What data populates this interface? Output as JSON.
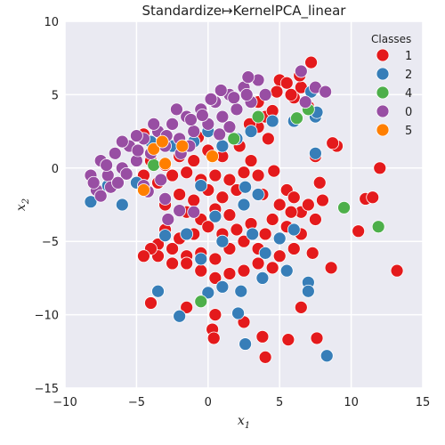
{
  "chart_data": {
    "type": "scatter",
    "title": "Standardize↦KernelPCA_linear",
    "xlabel": "x",
    "xlabel_sub": "1",
    "ylabel": "x",
    "ylabel_sub": "2",
    "xlim": [
      -10,
      15
    ],
    "ylim": [
      -15,
      10
    ],
    "xticks": [
      -10,
      -5,
      0,
      5,
      10,
      15
    ],
    "yticks": [
      -15,
      -10,
      -5,
      0,
      5,
      10
    ],
    "xtick_labels": [
      "−10",
      "−5",
      "0",
      "5",
      "10",
      "15"
    ],
    "ytick_labels": [
      "−15",
      "−10",
      "−5",
      "0",
      "5",
      "10"
    ],
    "grid": true,
    "legend": {
      "title": "Classes",
      "placement": "top-right"
    },
    "series": [
      {
        "name": "1",
        "color": "#e41a1c",
        "points": [
          [
            7.2,
            7.2
          ],
          [
            5.0,
            6.0
          ],
          [
            6.5,
            5.5
          ],
          [
            4.8,
            5.2
          ],
          [
            5.5,
            5.8
          ],
          [
            6.0,
            4.8
          ],
          [
            7.0,
            4.2
          ],
          [
            3.5,
            4.5
          ],
          [
            4.0,
            3.5
          ],
          [
            3.5,
            2.8
          ],
          [
            2.2,
            1.5
          ],
          [
            1.0,
            0.8
          ],
          [
            0.0,
            1.2
          ],
          [
            -1.0,
            0.5
          ],
          [
            -2.0,
            0.8
          ],
          [
            -3.0,
            0.2
          ],
          [
            -4.0,
            0.5
          ],
          [
            -4.5,
            -0.5
          ],
          [
            -3.5,
            -1.0
          ],
          [
            -2.5,
            -0.5
          ],
          [
            -1.5,
            -0.3
          ],
          [
            -0.5,
            -0.8
          ],
          [
            0.5,
            -0.5
          ],
          [
            1.5,
            -0.8
          ],
          [
            2.5,
            -0.3
          ],
          [
            3.5,
            -0.5
          ],
          [
            3.0,
            0.5
          ],
          [
            2.0,
            -1.5
          ],
          [
            1.0,
            -2.0
          ],
          [
            0.0,
            -1.5
          ],
          [
            -1.0,
            -2.2
          ],
          [
            -2.0,
            -1.8
          ],
          [
            -3.0,
            -2.5
          ],
          [
            -1.5,
            -3.0
          ],
          [
            -0.5,
            -3.5
          ],
          [
            0.5,
            -2.8
          ],
          [
            1.5,
            -3.2
          ],
          [
            2.5,
            -2.5
          ],
          [
            3.0,
            -3.8
          ],
          [
            2.0,
            -4.2
          ],
          [
            1.0,
            -4.5
          ],
          [
            0.0,
            -4.0
          ],
          [
            -1.0,
            -4.5
          ],
          [
            -2.0,
            -4.8
          ],
          [
            -3.0,
            -4.2
          ],
          [
            -3.5,
            -5.2
          ],
          [
            -2.5,
            -5.5
          ],
          [
            -1.5,
            -6.0
          ],
          [
            -0.5,
            -5.8
          ],
          [
            0.5,
            -6.2
          ],
          [
            1.5,
            -5.5
          ],
          [
            2.5,
            -5.0
          ],
          [
            3.5,
            -5.5
          ],
          [
            4.0,
            -4.5
          ],
          [
            4.5,
            -3.5
          ],
          [
            5.0,
            -2.5
          ],
          [
            5.5,
            -1.5
          ],
          [
            6.0,
            -2.0
          ],
          [
            6.5,
            -3.0
          ],
          [
            7.0,
            -2.5
          ],
          [
            7.5,
            -3.5
          ],
          [
            6.5,
            -4.5
          ],
          [
            5.5,
            -4.0
          ],
          [
            6.0,
            -5.5
          ],
          [
            5.0,
            -6.0
          ],
          [
            4.5,
            -6.8
          ],
          [
            3.5,
            -6.5
          ],
          [
            2.5,
            -7.0
          ],
          [
            1.5,
            -7.2
          ],
          [
            0.5,
            -7.5
          ],
          [
            -0.5,
            -7.0
          ],
          [
            -1.5,
            -6.5
          ],
          [
            -2.5,
            -6.5
          ],
          [
            -3.5,
            -6.0
          ],
          [
            -4.0,
            -5.5
          ],
          [
            -4.5,
            -6.0
          ],
          [
            -4.0,
            -9.2
          ],
          [
            -1.5,
            -9.5
          ],
          [
            0.5,
            -10.0
          ],
          [
            0.3,
            -11.0
          ],
          [
            0.4,
            -11.6
          ],
          [
            2.5,
            -10.5
          ],
          [
            3.8,
            -11.5
          ],
          [
            4.0,
            -12.9
          ],
          [
            5.6,
            -11.7
          ],
          [
            7.6,
            -11.6
          ],
          [
            6.5,
            -9.5
          ],
          [
            8.6,
            -6.8
          ],
          [
            10.5,
            -4.3
          ],
          [
            13.2,
            -7.0
          ],
          [
            11.0,
            -2.1
          ],
          [
            12.0,
            0.0
          ],
          [
            11.5,
            -2.0
          ],
          [
            9.0,
            1.5
          ],
          [
            8.7,
            1.7
          ],
          [
            7.5,
            0.8
          ],
          [
            7.8,
            -1.0
          ],
          [
            8.0,
            -2.2
          ],
          [
            7.3,
            -5.8
          ],
          [
            5.8,
            -3.0
          ],
          [
            3.8,
            -1.8
          ],
          [
            4.6,
            -0.2
          ],
          [
            4.2,
            2.0
          ],
          [
            2.9,
            3.0
          ],
          [
            -0.7,
            2.1
          ],
          [
            -4.5,
            2.3
          ],
          [
            5.8,
            5.0
          ],
          [
            6.4,
            6.3
          ],
          [
            4.5,
            3.9
          ]
        ]
      },
      {
        "name": "2",
        "color": "#377eb8",
        "points": [
          [
            6.5,
            6.6
          ],
          [
            7.2,
            5.2
          ],
          [
            7.5,
            3.5
          ],
          [
            6.0,
            3.2
          ],
          [
            4.5,
            3.2
          ],
          [
            3.0,
            2.5
          ],
          [
            2.0,
            2.0
          ],
          [
            1.0,
            1.5
          ],
          [
            0.0,
            2.5
          ],
          [
            -1.0,
            1.8
          ],
          [
            -2.5,
            1.5
          ],
          [
            -4.0,
            1.8
          ],
          [
            -5.0,
            -1.0
          ],
          [
            -6.0,
            -2.5
          ],
          [
            -8.2,
            -2.3
          ],
          [
            -7.0,
            -1.2
          ],
          [
            3.5,
            -1.8
          ],
          [
            2.5,
            -2.5
          ],
          [
            0.5,
            -3.3
          ],
          [
            -1.5,
            -4.5
          ],
          [
            -3.0,
            -4.6
          ],
          [
            4.0,
            -5.8
          ],
          [
            5.0,
            -4.8
          ],
          [
            6.0,
            -4.2
          ],
          [
            5.5,
            -7.0
          ],
          [
            7.0,
            -7.8
          ],
          [
            7.0,
            -8.4
          ],
          [
            3.8,
            -7.5
          ],
          [
            2.3,
            -8.4
          ],
          [
            1.0,
            -8.1
          ],
          [
            -0.5,
            -6.2
          ],
          [
            -3.5,
            -8.4
          ],
          [
            -2.0,
            -10.1
          ],
          [
            -0.0,
            -8.5
          ],
          [
            2.1,
            -9.9
          ],
          [
            2.6,
            -12.0
          ],
          [
            8.3,
            -12.8
          ],
          [
            1.0,
            -5.0
          ],
          [
            3.1,
            -4.5
          ],
          [
            2.6,
            -1.3
          ],
          [
            7.5,
            1.0
          ],
          [
            7.6,
            3.8
          ],
          [
            -0.5,
            -1.2
          ]
        ]
      },
      {
        "name": "4",
        "color": "#4daf4a",
        "points": [
          [
            6.2,
            3.4
          ],
          [
            7.0,
            4.0
          ],
          [
            9.5,
            -2.7
          ],
          [
            11.9,
            -4.0
          ],
          [
            -0.5,
            -9.1
          ],
          [
            1.8,
            2.0
          ],
          [
            -3.8,
            0.2
          ],
          [
            3.5,
            3.5
          ]
        ]
      },
      {
        "name": "0",
        "color": "#984ea3",
        "points": [
          [
            -8.2,
            -0.5
          ],
          [
            -7.8,
            -1.5
          ],
          [
            -7.5,
            0.5
          ],
          [
            -7.0,
            -0.5
          ],
          [
            -6.5,
            1.0
          ],
          [
            -6.0,
            0.0
          ],
          [
            -5.5,
            1.5
          ],
          [
            -5.0,
            0.5
          ],
          [
            -4.5,
            2.0
          ],
          [
            -4.0,
            1.0
          ],
          [
            -3.5,
            2.5
          ],
          [
            -3.0,
            1.5
          ],
          [
            -2.5,
            3.0
          ],
          [
            -2.0,
            2.0
          ],
          [
            -1.5,
            3.5
          ],
          [
            -1.0,
            2.5
          ],
          [
            -0.5,
            4.0
          ],
          [
            0.0,
            3.0
          ],
          [
            0.5,
            4.5
          ],
          [
            1.0,
            3.5
          ],
          [
            1.5,
            5.0
          ],
          [
            2.0,
            4.0
          ],
          [
            2.5,
            5.5
          ],
          [
            3.0,
            4.5
          ],
          [
            3.5,
            6.0
          ],
          [
            4.0,
            5.0
          ],
          [
            6.5,
            6.6
          ],
          [
            7.5,
            5.5
          ],
          [
            8.2,
            5.2
          ],
          [
            6.8,
            4.5
          ],
          [
            -6.0,
            1.8
          ],
          [
            -5.0,
            2.2
          ],
          [
            -4.2,
            -1.6
          ],
          [
            -3.0,
            -2.1
          ],
          [
            -2.0,
            -2.9
          ],
          [
            -1.0,
            -3.0
          ],
          [
            -2.8,
            -3.5
          ],
          [
            -4.5,
            -1.2
          ],
          [
            -6.8,
            -1.3
          ],
          [
            -7.5,
            -1.9
          ],
          [
            -3.8,
            3.0
          ],
          [
            -1.2,
            3.3
          ],
          [
            0.8,
            2.3
          ],
          [
            1.5,
            2.8
          ],
          [
            -2.2,
            4.0
          ],
          [
            0.2,
            4.7
          ],
          [
            1.8,
            4.8
          ],
          [
            2.8,
            6.2
          ],
          [
            2.7,
            5.0
          ],
          [
            0.9,
            5.3
          ],
          [
            -0.4,
            3.6
          ],
          [
            -1.9,
            1.0
          ],
          [
            -2.9,
            2.2
          ],
          [
            -4.9,
            1.2
          ],
          [
            -5.7,
            -0.4
          ],
          [
            -6.3,
            -1.0
          ],
          [
            -7.1,
            0.2
          ],
          [
            -8.0,
            -1.0
          ],
          [
            -3.3,
            -0.8
          ],
          [
            -1.3,
            1.5
          ]
        ]
      },
      {
        "name": "5",
        "color": "#ff7f00",
        "points": [
          [
            -3.8,
            1.3
          ],
          [
            -1.8,
            1.5
          ],
          [
            -3.0,
            0.3
          ],
          [
            -4.5,
            -1.5
          ],
          [
            0.3,
            0.8
          ],
          [
            -3.2,
            1.8
          ]
        ]
      }
    ]
  }
}
